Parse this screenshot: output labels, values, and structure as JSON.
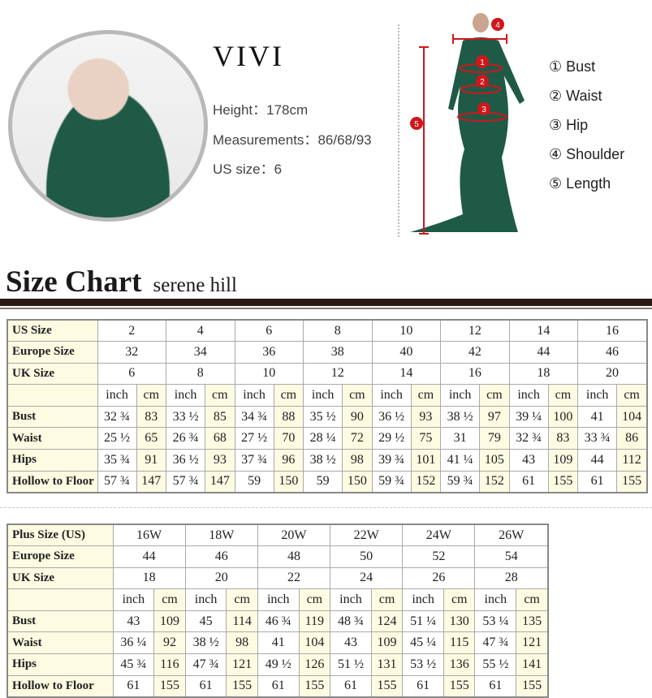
{
  "model": {
    "name": "VIVI",
    "height_label": "Height：",
    "height": "178cm",
    "measurements_label": "Measurements：",
    "measurements": "86/68/93",
    "us_size_label": "US size：",
    "us_size": "6"
  },
  "legend": [
    "① Bust",
    "② Waist",
    "③ Hip",
    "④ Shoulder",
    "⑤ Length"
  ],
  "markers": [
    "1",
    "2",
    "3",
    "4",
    "5"
  ],
  "title": "Size Chart",
  "brand": "serene hill",
  "colors": {
    "accent": "#d0161b",
    "dress": "#1f5a47",
    "label_bg": "#fdfbe2",
    "rule": "#2b1b14"
  },
  "table_standard": {
    "size_rows": [
      [
        "US Size",
        "2",
        "4",
        "6",
        "8",
        "10",
        "12",
        "14",
        "16"
      ],
      [
        "Europe Size",
        "32",
        "34",
        "36",
        "38",
        "40",
        "42",
        "44",
        "46"
      ],
      [
        "UK Size",
        "6",
        "8",
        "10",
        "12",
        "14",
        "16",
        "18",
        "20"
      ]
    ],
    "units": [
      "inch",
      "cm"
    ],
    "measure_rows": [
      [
        "Bust",
        "32 ¾",
        "83",
        "33 ½",
        "85",
        "34 ¾",
        "88",
        "35 ½",
        "90",
        "36 ½",
        "93",
        "38 ½",
        "97",
        "39 ¼",
        "100",
        "41",
        "104"
      ],
      [
        "Waist",
        "25 ½",
        "65",
        "26 ¾",
        "68",
        "27 ½",
        "70",
        "28 ¼",
        "72",
        "29 ½",
        "75",
        "31",
        "79",
        "32 ¾",
        "83",
        "33 ¾",
        "86"
      ],
      [
        "Hips",
        "35 ¾",
        "91",
        "36 ½",
        "93",
        "37 ¾",
        "96",
        "38 ½",
        "98",
        "39 ¾",
        "101",
        "41 ¼",
        "105",
        "43",
        "109",
        "44",
        "112"
      ],
      [
        "Hollow to Floor",
        "57 ¾",
        "147",
        "57 ¾",
        "147",
        "59",
        "150",
        "59",
        "150",
        "59 ¾",
        "152",
        "59 ¾",
        "152",
        "61",
        "155",
        "61",
        "155"
      ]
    ]
  },
  "table_plus": {
    "size_rows": [
      [
        "Plus Size (US)",
        "16W",
        "18W",
        "20W",
        "22W",
        "24W",
        "26W"
      ],
      [
        "Europe Size",
        "44",
        "46",
        "48",
        "50",
        "52",
        "54"
      ],
      [
        "UK Size",
        "18",
        "20",
        "22",
        "24",
        "26",
        "28"
      ]
    ],
    "units": [
      "inch",
      "cm"
    ],
    "measure_rows": [
      [
        "Bust",
        "43",
        "109",
        "45",
        "114",
        "46 ¾",
        "119",
        "48 ¾",
        "124",
        "51 ¼",
        "130",
        "53 ¼",
        "135"
      ],
      [
        "Waist",
        "36 ¼",
        "92",
        "38 ½",
        "98",
        "41",
        "104",
        "43",
        "109",
        "45 ¼",
        "115",
        "47 ¾",
        "121"
      ],
      [
        "Hips",
        "45 ¾",
        "116",
        "47 ¾",
        "121",
        "49 ½",
        "126",
        "51 ½",
        "131",
        "53 ½",
        "136",
        "55 ½",
        "141"
      ],
      [
        "Hollow to Floor",
        "61",
        "155",
        "61",
        "155",
        "61",
        "155",
        "61",
        "155",
        "61",
        "155",
        "61",
        "155"
      ]
    ]
  }
}
